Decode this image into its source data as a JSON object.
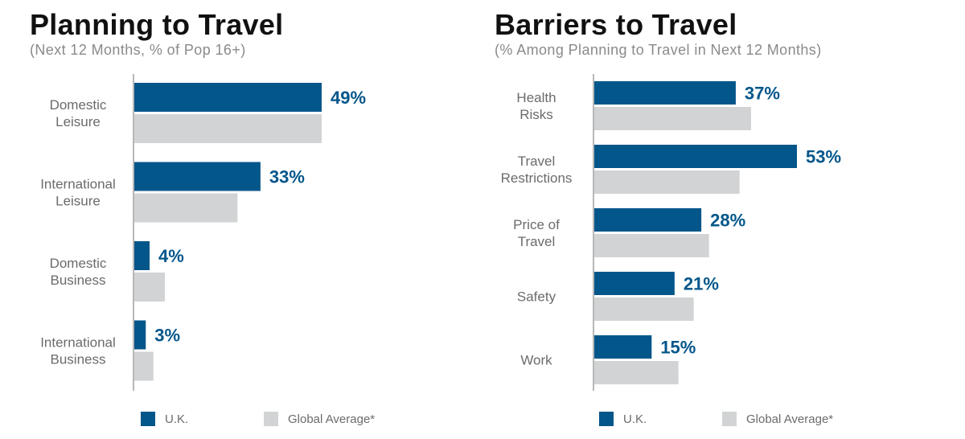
{
  "colors": {
    "uk": "#03568a",
    "global": "#d1d3d4"
  },
  "legend": {
    "uk": "U.K.",
    "global": "Global Average*"
  },
  "panels": [
    {
      "title": "Planning to Travel",
      "subtitle": "(Next 12 Months, % of Pop 16+)"
    },
    {
      "title": "Barriers to Travel",
      "subtitle": "(% Among Planning to Travel in Next 12 Months)"
    }
  ],
  "chart_data": [
    {
      "type": "bar",
      "orientation": "horizontal",
      "title": "Planning to Travel",
      "subtitle": "(Next 12 Months, % of Pop 16+)",
      "categories": [
        [
          "Domestic",
          "Leisure"
        ],
        [
          "International",
          "Leisure"
        ],
        [
          "Domestic",
          "Business"
        ],
        [
          "International",
          "Business"
        ]
      ],
      "series": [
        {
          "name": "U.K.",
          "values": [
            49,
            33,
            4,
            3
          ],
          "labels": [
            "49%",
            "33%",
            "4%",
            "3%"
          ]
        },
        {
          "name": "Global Average*",
          "values": [
            49,
            27,
            8,
            5
          ]
        }
      ],
      "xlim": [
        0,
        60
      ],
      "grid": false,
      "legend_position": "bottom"
    },
    {
      "type": "bar",
      "orientation": "horizontal",
      "title": "Barriers to Travel",
      "subtitle": "(% Among Planning to Travel in Next 12 Months)",
      "categories": [
        [
          "Health",
          "Risks"
        ],
        [
          "Travel",
          "Restrictions"
        ],
        [
          "Price of",
          "Travel"
        ],
        [
          "Safety"
        ],
        [
          "Work"
        ]
      ],
      "series": [
        {
          "name": "U.K.",
          "values": [
            37,
            53,
            28,
            21,
            15
          ],
          "labels": [
            "37%",
            "53%",
            "28%",
            "21%",
            "15%"
          ]
        },
        {
          "name": "Global Average*",
          "values": [
            41,
            38,
            30,
            26,
            22
          ]
        }
      ],
      "xlim": [
        0,
        60
      ],
      "grid": false,
      "legend_position": "bottom"
    }
  ]
}
